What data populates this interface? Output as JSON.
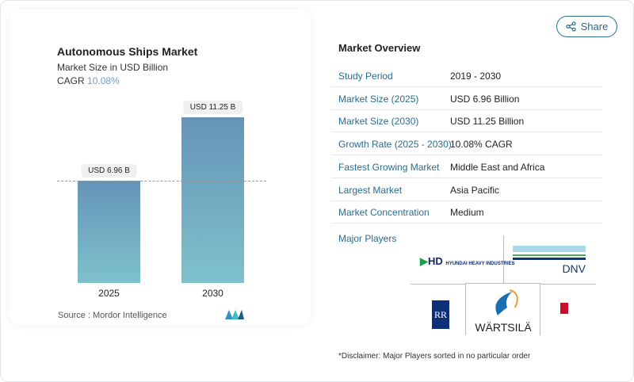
{
  "chart": {
    "title": "Autonomous Ships Market",
    "subtitle": "Market Size in USD Billion",
    "cagr_label": "CAGR",
    "cagr_value": "10.08%",
    "source": "Source :  Mordor Intelligence"
  },
  "chart_data": {
    "type": "bar",
    "categories": [
      "2025",
      "2030"
    ],
    "values": [
      6.96,
      11.25
    ],
    "data_labels": [
      "USD 6.96 B",
      "USD 11.25 B"
    ],
    "title": "Autonomous Ships Market",
    "ylabel": "Market Size in USD Billion",
    "colors": [
      "#6594b8",
      "#7ec1cb"
    ]
  },
  "share": {
    "label": "Share",
    "icon": "share-icon"
  },
  "overview": {
    "title": "Market Overview",
    "rows": [
      {
        "k": "Study Period",
        "v": "2019 - 2030"
      },
      {
        "k": "Market Size (2025)",
        "v": "USD 6.96 Billion"
      },
      {
        "k": "Market Size (2030)",
        "v": "USD 11.25 Billion"
      },
      {
        "k": "Growth Rate (2025 - 2030)",
        "v": "10.08% CAGR"
      },
      {
        "k": "Fastest Growing Market",
        "v": "Middle East and Africa"
      },
      {
        "k": "Largest Market",
        "v": "Asia Pacific"
      },
      {
        "k": "Market Concentration",
        "v": "Medium"
      }
    ]
  },
  "players": {
    "title": "Major Players",
    "logos": [
      "HD HYUNDAI HEAVY INDUSTRIES",
      "DNV",
      "ROLLS ROYCE",
      "WÄRTSILÄ",
      "KONGSBERG"
    ]
  },
  "disclaimer": "*Disclaimer: Major Players sorted in no particular order"
}
